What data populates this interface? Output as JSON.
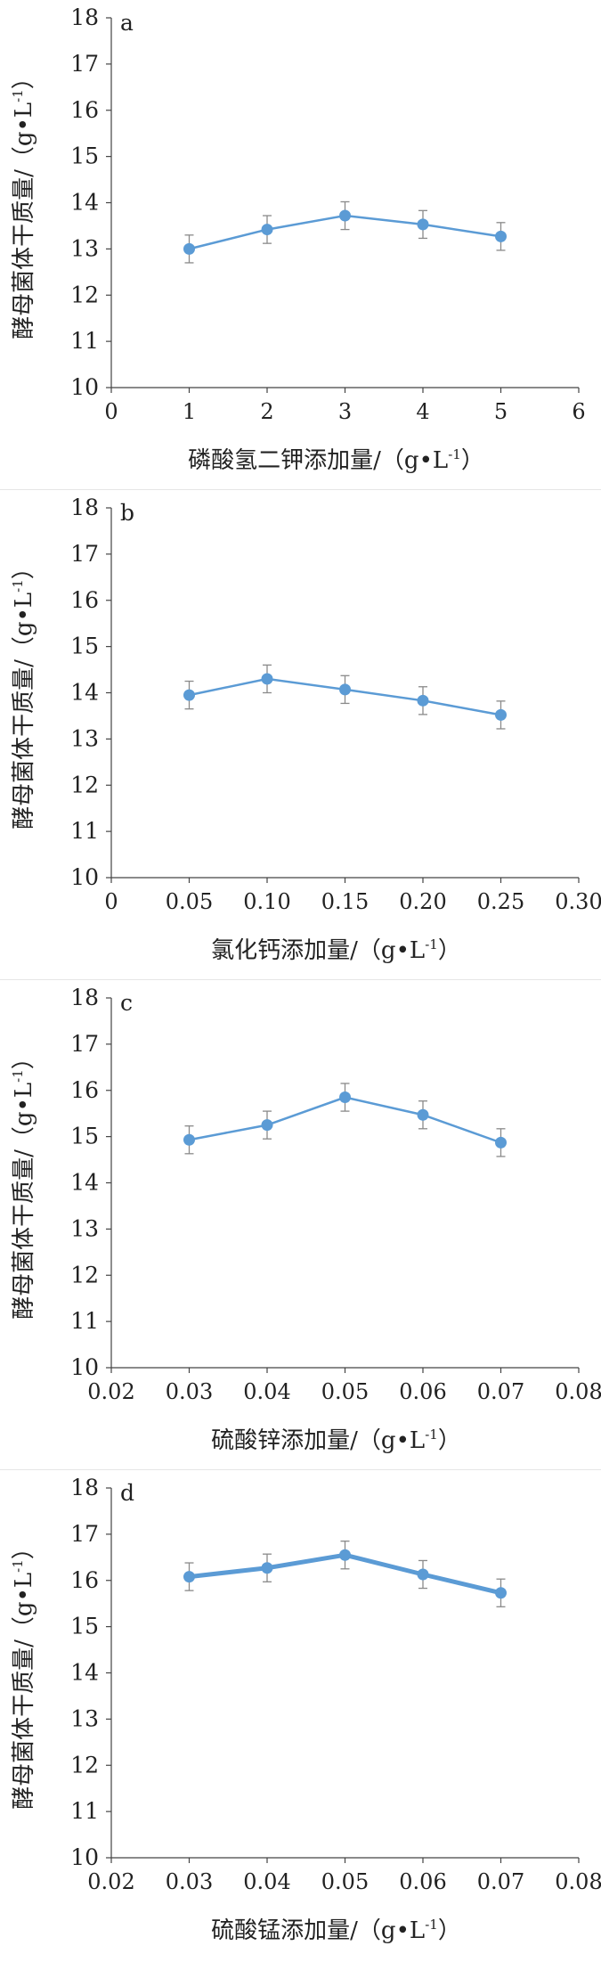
{
  "chart_data": [
    {
      "type": "line",
      "panel_label": "a",
      "xlabel": "磷酸氢二钾添加量/（g•L",
      "xlabel_sup": "-1",
      "xlabel_tail": "）",
      "ylabel": "酵母菌体干质量/（g•L",
      "ylabel_sup": "-1",
      "ylabel_tail": "）",
      "xlim": [
        0,
        6
      ],
      "ylim": [
        10,
        18
      ],
      "xticks": [
        "0",
        "1",
        "2",
        "3",
        "4",
        "5",
        "6"
      ],
      "yticks": [
        "10",
        "11",
        "12",
        "13",
        "14",
        "15",
        "16",
        "17",
        "18"
      ],
      "x": [
        1,
        2,
        3,
        4,
        5
      ],
      "y": [
        13.0,
        13.42,
        13.72,
        13.53,
        13.27
      ],
      "error": [
        0.3,
        0.3,
        0.3,
        0.3,
        0.3
      ],
      "color": "#5b9bd5"
    },
    {
      "type": "line",
      "panel_label": "b",
      "xlabel": "氯化钙添加量/（g•L",
      "xlabel_sup": "-1",
      "xlabel_tail": "）",
      "ylabel": "酵母菌体干质量/（g•L",
      "ylabel_sup": "-1",
      "ylabel_tail": "）",
      "xlim": [
        0,
        0.3
      ],
      "ylim": [
        10,
        18
      ],
      "xticks": [
        "0",
        "0.05",
        "0.10",
        "0.15",
        "0.20",
        "0.25",
        "0.30"
      ],
      "yticks": [
        "10",
        "11",
        "12",
        "13",
        "14",
        "15",
        "16",
        "17",
        "18"
      ],
      "x": [
        0.05,
        0.1,
        0.15,
        0.2,
        0.25
      ],
      "y": [
        13.95,
        14.3,
        14.07,
        13.83,
        13.52
      ],
      "error": [
        0.3,
        0.3,
        0.3,
        0.3,
        0.3
      ],
      "color": "#5b9bd5"
    },
    {
      "type": "line",
      "panel_label": "c",
      "xlabel": "硫酸锌添加量/（g•L",
      "xlabel_sup": "-1",
      "xlabel_tail": "）",
      "ylabel": "酵母菌体干质量/（g•L",
      "ylabel_sup": "-1",
      "ylabel_tail": "）",
      "xlim": [
        0.02,
        0.08
      ],
      "ylim": [
        10,
        18
      ],
      "xticks": [
        "0.02",
        "0.03",
        "0.04",
        "0.05",
        "0.06",
        "0.07",
        "0.08"
      ],
      "yticks": [
        "10",
        "11",
        "12",
        "13",
        "14",
        "15",
        "16",
        "17",
        "18"
      ],
      "x": [
        0.03,
        0.04,
        0.05,
        0.06,
        0.07
      ],
      "y": [
        14.93,
        15.25,
        15.85,
        15.47,
        14.87
      ],
      "error": [
        0.3,
        0.3,
        0.3,
        0.3,
        0.3
      ],
      "color": "#5b9bd5"
    },
    {
      "type": "line",
      "panel_label": "d",
      "xlabel": "硫酸锰添加量/（g•L",
      "xlabel_sup": "-1",
      "xlabel_tail": "）",
      "ylabel": "酵母菌体干质量/（g•L",
      "ylabel_sup": "-1",
      "ylabel_tail": "）",
      "xlim": [
        0.02,
        0.08
      ],
      "ylim": [
        10,
        18
      ],
      "xticks": [
        "0.02",
        "0.03",
        "0.04",
        "0.05",
        "0.06",
        "0.07",
        "0.08"
      ],
      "yticks": [
        "10",
        "11",
        "12",
        "13",
        "14",
        "15",
        "16",
        "17",
        "18"
      ],
      "x": [
        0.03,
        0.04,
        0.05,
        0.06,
        0.07
      ],
      "y": [
        16.08,
        16.27,
        16.55,
        16.13,
        15.73
      ],
      "error": [
        0.3,
        0.3,
        0.3,
        0.3,
        0.3
      ],
      "color": "#5b9bd5"
    }
  ]
}
